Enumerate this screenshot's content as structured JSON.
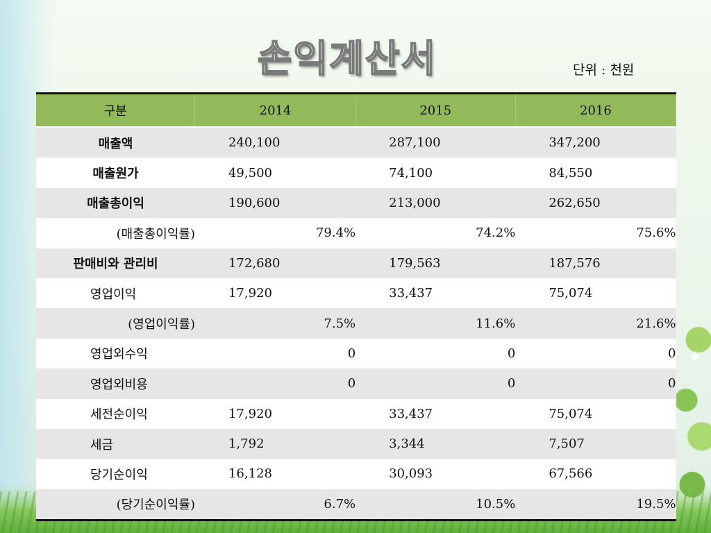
{
  "title": "손익계산서",
  "unit": "단위 : 천원",
  "header": [
    "구분",
    "2014",
    "2015",
    "2016"
  ],
  "rows": [
    {
      "label": "매출액",
      "values": [
        "240,100",
        "287,100",
        "347,200"
      ],
      "style": "bold",
      "kind": "value"
    },
    {
      "label": "매출원가",
      "values": [
        "49,500",
        "74,100",
        "84,550"
      ],
      "style": "bold",
      "kind": "value"
    },
    {
      "label": "매출총이익",
      "values": [
        "190,600",
        "213,000",
        "262,650"
      ],
      "style": "bold",
      "kind": "value"
    },
    {
      "label": "(매출총이익률)",
      "values": [
        "79.4%",
        "74.2%",
        "75.6%"
      ],
      "style": "ratio",
      "kind": "pct"
    },
    {
      "label": "판매비와 관리비",
      "values": [
        "172,680",
        "179,563",
        "187,576"
      ],
      "style": "bold",
      "kind": "value"
    },
    {
      "label": "영업이익",
      "values": [
        "17,920",
        "33,437",
        "75,074"
      ],
      "style": "indent",
      "kind": "value"
    },
    {
      "label": "(영업이익률)",
      "values": [
        "7.5%",
        "11.6%",
        "21.6%"
      ],
      "style": "ratio",
      "kind": "pct"
    },
    {
      "label": "영업외수익",
      "values": [
        "0",
        "0",
        "0"
      ],
      "style": "indent",
      "kind": "pct"
    },
    {
      "label": "영업외비용",
      "values": [
        "0",
        "0",
        "0"
      ],
      "style": "indent",
      "kind": "pct"
    },
    {
      "label": "세전순이익",
      "values": [
        "17,920",
        "33,437",
        "75,074"
      ],
      "style": "indent",
      "kind": "value"
    },
    {
      "label": "세금",
      "values": [
        "1,792",
        "3,344",
        "7,507"
      ],
      "style": "indent",
      "kind": "value"
    },
    {
      "label": "당기순이익",
      "values": [
        "16,128",
        "30,093",
        "67,566"
      ],
      "style": "indent",
      "kind": "value"
    },
    {
      "label": "(당기순이익률)",
      "values": [
        "6.7%",
        "10.5%",
        "19.5%"
      ],
      "style": "ratio",
      "kind": "pct"
    }
  ]
}
